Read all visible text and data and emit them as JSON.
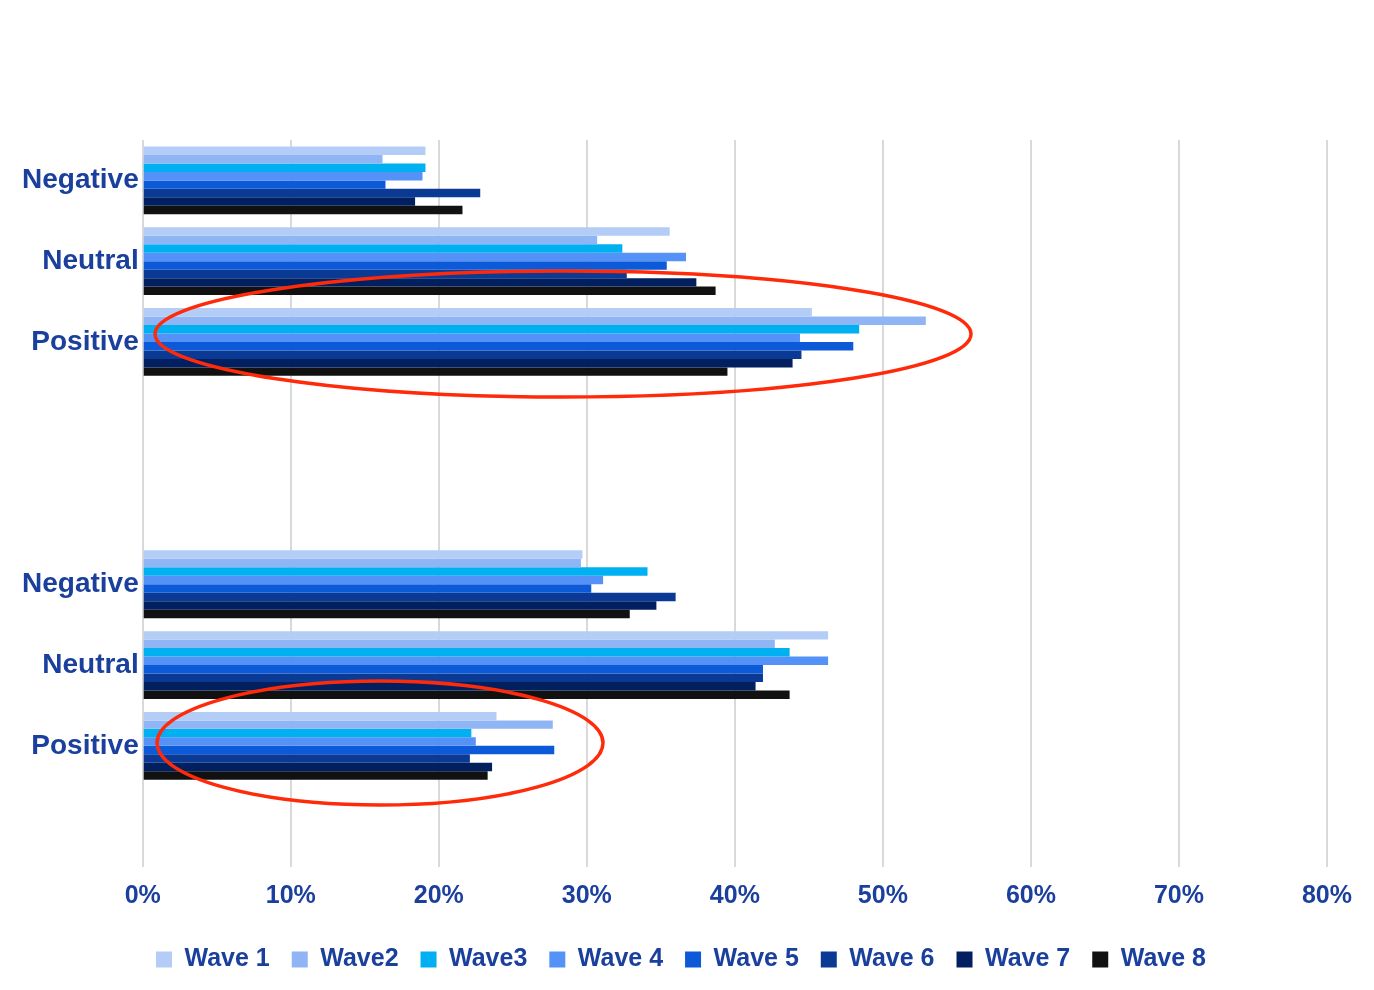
{
  "chart_data": {
    "type": "bar",
    "orientation": "horizontal",
    "categories": [
      "Negative",
      "Neutral",
      "Positive",
      null,
      null,
      "Negative",
      "Neutral",
      "Positive",
      null
    ],
    "series": [
      {
        "name": "Wave 1",
        "color": "#b4cdf7",
        "values": [
          19.1,
          35.6,
          45.2,
          null,
          null,
          29.7,
          46.3,
          23.9,
          null
        ]
      },
      {
        "name": "Wave2",
        "color": "#8fb5f5",
        "values": [
          16.2,
          30.7,
          52.9,
          null,
          null,
          29.6,
          42.7,
          27.7,
          null
        ]
      },
      {
        "name": "Wave3",
        "color": "#00b0f0",
        "values": [
          19.1,
          32.4,
          48.4,
          null,
          null,
          34.1,
          43.7,
          22.2,
          null
        ]
      },
      {
        "name": "Wave 4",
        "color": "#5592f7",
        "values": [
          18.9,
          36.7,
          44.4,
          null,
          null,
          31.1,
          46.3,
          22.5,
          null
        ]
      },
      {
        "name": "Wave 5",
        "color": "#0c5ad8",
        "values": [
          16.4,
          35.4,
          48.0,
          null,
          null,
          30.3,
          41.9,
          27.8,
          null
        ]
      },
      {
        "name": "Wave 6",
        "color": "#0b3a94",
        "values": [
          22.8,
          32.7,
          44.5,
          null,
          null,
          36.0,
          41.9,
          22.1,
          null
        ]
      },
      {
        "name": "Wave 7",
        "color": "#02205f",
        "values": [
          18.4,
          37.4,
          43.9,
          null,
          null,
          34.7,
          41.4,
          23.6,
          null
        ]
      },
      {
        "name": "Wave 8",
        "color": "#111111",
        "values": [
          21.6,
          38.7,
          39.5,
          null,
          null,
          32.9,
          43.7,
          23.3,
          null
        ]
      }
    ],
    "xlim": [
      0,
      80
    ],
    "xticks": [
      {
        "value": 0,
        "label": "0%"
      },
      {
        "value": 10,
        "label": "10%"
      },
      {
        "value": 20,
        "label": "20%"
      },
      {
        "value": 30,
        "label": "30%"
      },
      {
        "value": 40,
        "label": "40%"
      },
      {
        "value": 50,
        "label": "50%"
      },
      {
        "value": 60,
        "label": "60%"
      },
      {
        "value": 70,
        "label": "70%"
      },
      {
        "value": 80,
        "label": "80%"
      }
    ],
    "grid": "x",
    "legend": "bottom"
  }
}
